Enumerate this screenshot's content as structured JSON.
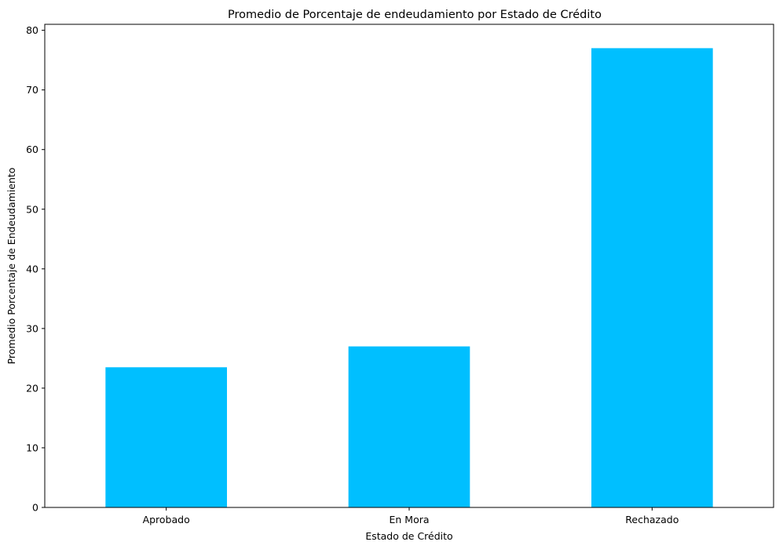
{
  "chart_data": {
    "type": "bar",
    "title": "Promedio de Porcentaje de endeudamiento por Estado de Crédito",
    "xlabel": "Estado de Crédito",
    "ylabel": "Promedio Porcentaje de Endeudamiento",
    "categories": [
      "Aprobado",
      "En Mora",
      "Rechazado"
    ],
    "values": [
      23.5,
      27.0,
      77.0
    ],
    "ylim": [
      0,
      81
    ],
    "yticks": [
      0,
      10,
      20,
      30,
      40,
      50,
      60,
      70,
      80
    ],
    "grid": false,
    "legend": "none",
    "bar_color": "#00bfff"
  }
}
